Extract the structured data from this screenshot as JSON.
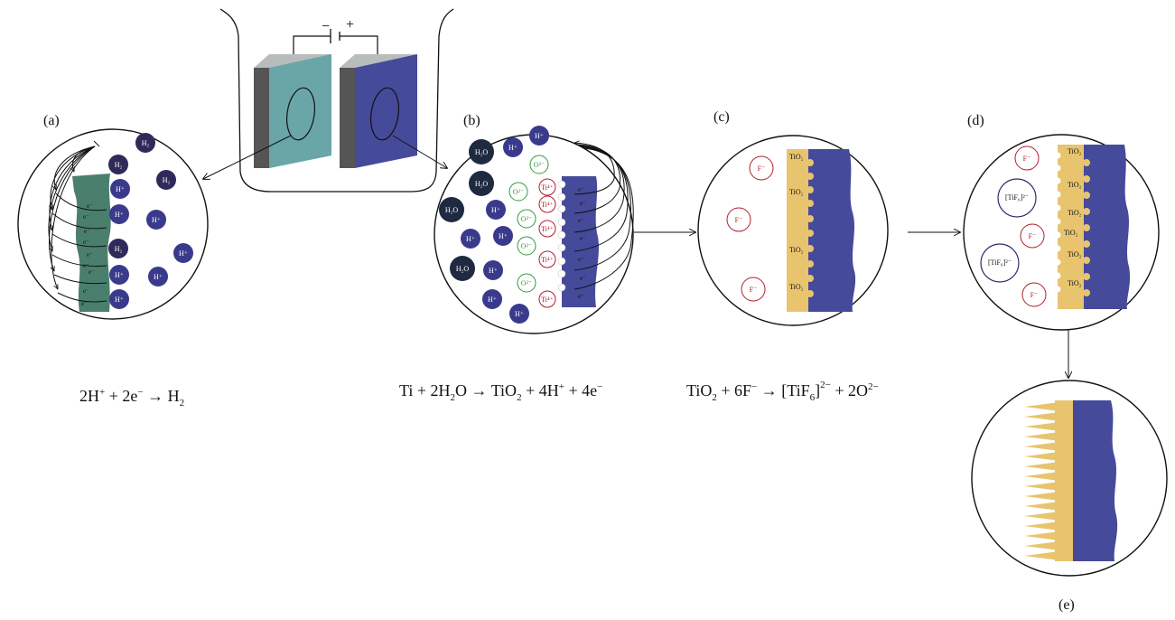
{
  "sign_minus": "−",
  "sign_plus": "+",
  "labels": {
    "a": "(a)",
    "b": "(b)",
    "c": "(c)",
    "d": "(d)",
    "e": "(e)"
  },
  "eq_a": {
    "p1": "2H",
    "s1": "+",
    "p2": " + 2e",
    "s2": "−",
    "p3": " → H",
    "s3": "2"
  },
  "eq_b": {
    "p1": "Ti + 2H",
    "s1": "2",
    "p2": "O → TiO",
    "s2": "2",
    "p3": " + 4H",
    "s3": "+",
    "p4": " + 4e",
    "s4": "−"
  },
  "eq_c": {
    "p1": "TiO",
    "s1": "2",
    "p2": " + 6F",
    "s2": "−",
    "p3": " → [TiF",
    "s3": "6",
    "p4": "]",
    "s4": "2−",
    "p5": " + 2O",
    "s5": "2−"
  },
  "ions": {
    "h2": "H₂",
    "hplus": "H⁺",
    "h2o": "H₂O",
    "o2": "O²⁻",
    "ti4": "Ti⁴⁺",
    "fminus": "F⁻",
    "tif6": "[TiF₆]²⁻",
    "electron": "e⁻",
    "tio2": "TiO₂"
  },
  "colors": {
    "cathode": "#4a7f6e",
    "anode": "#464a9a",
    "oxide": "#e8c46e",
    "h2": "#2f2a5a",
    "hplus": "#3a3a8c",
    "h2o": "#1f2a40",
    "red_ion": "#b01e2a",
    "green_ion": "#2e9a3c"
  }
}
